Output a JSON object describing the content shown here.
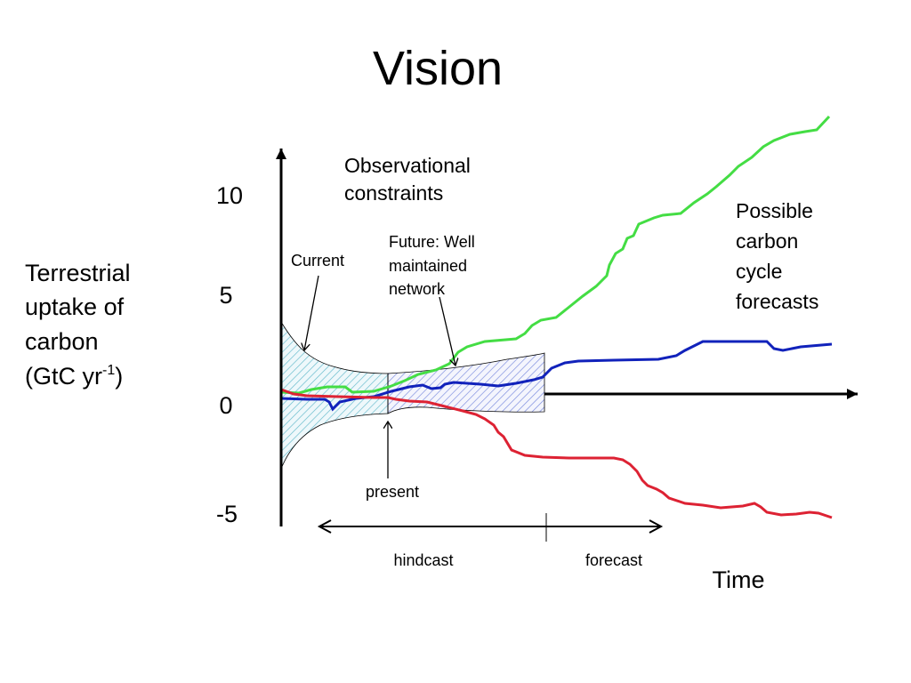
{
  "title": "Vision",
  "y_axis": {
    "label_lines": [
      "Terrestrial",
      "uptake of",
      "carbon"
    ],
    "label_unit_prefix": "(GtC yr",
    "label_unit_superscript": "-1",
    "label_unit_suffix": ")",
    "ticks": [
      "10",
      "5",
      "0",
      "-5"
    ]
  },
  "x_axis": {
    "label": "Time"
  },
  "annotations": {
    "observational_lines": [
      "Observational",
      "constraints"
    ],
    "current": "Current",
    "future_lines": [
      "Future: Well",
      "maintained",
      "network"
    ],
    "present": "present",
    "possible_lines": [
      "Possible",
      "carbon",
      "cycle",
      "forecasts"
    ],
    "hindcast": "hindcast",
    "forecast": "forecast"
  },
  "colors": {
    "high_scenario": "#44dd44",
    "mid_scenario": "#1122bb",
    "low_scenario": "#dd2233",
    "current_band_hatch": "#66bbcc",
    "future_band_hatch": "#7788dd"
  }
}
